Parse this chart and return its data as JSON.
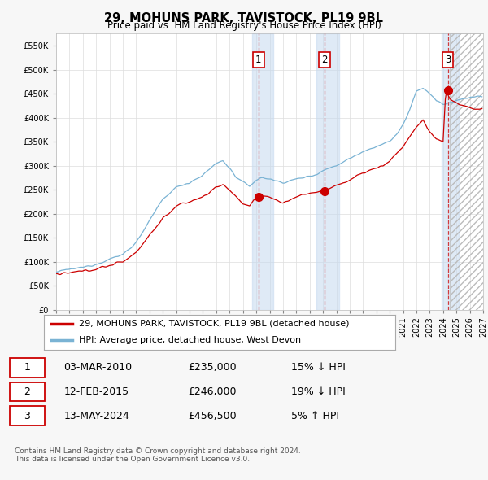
{
  "title": "29, MOHUNS PARK, TAVISTOCK, PL19 9BL",
  "subtitle": "Price paid vs. HM Land Registry's House Price Index (HPI)",
  "ylim": [
    0,
    575000
  ],
  "yticks": [
    0,
    50000,
    100000,
    150000,
    200000,
    250000,
    300000,
    350000,
    400000,
    450000,
    500000,
    550000
  ],
  "xlim_start": 1995.0,
  "xlim_end": 2027.0,
  "hpi_color": "#7ab3d4",
  "sale_color": "#cc0000",
  "background_color": "#f7f7f7",
  "plot_bg_color": "#ffffff",
  "grid_color": "#dddddd",
  "legend_line1": "29, MOHUNS PARK, TAVISTOCK, PL19 9BL (detached house)",
  "legend_line2": "HPI: Average price, detached house, West Devon",
  "transactions": [
    {
      "label": "1",
      "date": "03-MAR-2010",
      "price": 235000,
      "pct": "15%",
      "dir": "↓",
      "year": 2010.17
    },
    {
      "label": "2",
      "date": "12-FEB-2015",
      "price": 246000,
      "pct": "19%",
      "dir": "↓",
      "year": 2015.12
    },
    {
      "label": "3",
      "date": "13-MAY-2024",
      "price": 456500,
      "pct": "5%",
      "dir": "↑",
      "year": 2024.37
    }
  ],
  "footnote": "Contains HM Land Registry data © Crown copyright and database right 2024.\nThis data is licensed under the Open Government Licence v3.0.",
  "region_1_start": 2009.7,
  "region_1_end": 2011.3,
  "region_2_start": 2014.5,
  "region_2_end": 2016.2,
  "region_3_start": 2023.9,
  "region_3_end": 2025.2,
  "hatch_start": 2024.5,
  "hatch_end": 2027.0
}
